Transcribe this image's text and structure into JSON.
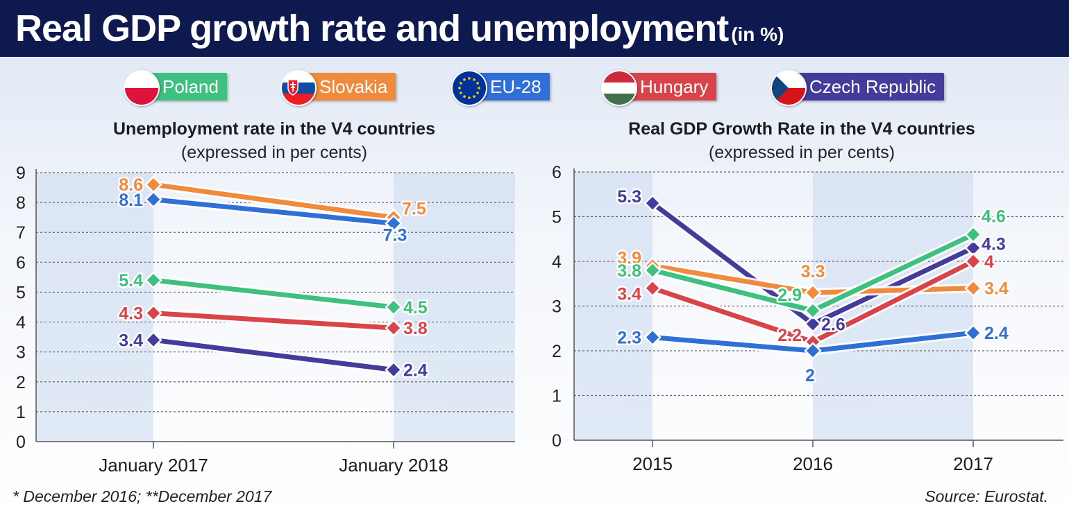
{
  "header": {
    "title": "Real GDP growth rate and unemployment",
    "unit": "(in %)"
  },
  "legend": [
    {
      "name": "Poland",
      "color": "#3ec07f"
    },
    {
      "name": "Slovakia",
      "color": "#f08a3c"
    },
    {
      "name": "EU-28",
      "color": "#2f6fd6"
    },
    {
      "name": "Hungary",
      "color": "#d9434a"
    },
    {
      "name": "Czech Republic",
      "color": "#433c9a"
    }
  ],
  "chart_data": [
    {
      "type": "line",
      "title": "Unemployment rate in the V4 countries",
      "subtitle": "(expressed in per cents)",
      "categories": [
        "January 2017",
        "January 2018"
      ],
      "ylim": [
        0,
        9
      ],
      "yticks": [
        "0",
        "1",
        "2",
        "3",
        "4",
        "5",
        "6",
        "7",
        "8",
        "9"
      ],
      "grid": true,
      "series": [
        {
          "name": "Slovakia",
          "color": "#f08a3c",
          "values": [
            8.6,
            7.5
          ],
          "labels": [
            "8.6",
            "7.5"
          ]
        },
        {
          "name": "EU-28",
          "color": "#2f6fd6",
          "values": [
            8.1,
            7.3
          ],
          "labels": [
            "8.1",
            "7.3"
          ]
        },
        {
          "name": "Poland",
          "color": "#3ec07f",
          "values": [
            5.4,
            4.5
          ],
          "labels": [
            "5.4",
            "4.5"
          ]
        },
        {
          "name": "Hungary",
          "color": "#d9434a",
          "values": [
            4.3,
            3.8
          ],
          "labels": [
            "4.3",
            "3.8"
          ]
        },
        {
          "name": "Czech Republic",
          "color": "#433c9a",
          "values": [
            3.4,
            2.4
          ],
          "labels": [
            "3.4",
            "2.4"
          ]
        }
      ]
    },
    {
      "type": "line",
      "title": "Real GDP Growth Rate in the V4 countries",
      "subtitle": "(expressed in per cents)",
      "categories": [
        "2015",
        "2016",
        "2017"
      ],
      "ylim": [
        0,
        6
      ],
      "yticks": [
        "0",
        "1",
        "2",
        "3",
        "4",
        "5",
        "6"
      ],
      "grid": true,
      "series": [
        {
          "name": "Czech Republic",
          "color": "#433c9a",
          "values": [
            5.3,
            2.6,
            4.3
          ],
          "labels": [
            "5.3",
            "2.6",
            "4.3"
          ]
        },
        {
          "name": "Slovakia",
          "color": "#f08a3c",
          "values": [
            3.9,
            3.3,
            3.4
          ],
          "labels": [
            "3.9",
            "3.3",
            "3.4"
          ]
        },
        {
          "name": "Poland",
          "color": "#3ec07f",
          "values": [
            3.8,
            2.9,
            4.6
          ],
          "labels": [
            "3.8",
            "2.9",
            "4.6"
          ]
        },
        {
          "name": "Hungary",
          "color": "#d9434a",
          "values": [
            3.4,
            2.2,
            4.0
          ],
          "labels": [
            "3.4",
            "2.2",
            "4"
          ]
        },
        {
          "name": "EU-28",
          "color": "#2f6fd6",
          "values": [
            2.3,
            2.0,
            2.4
          ],
          "labels": [
            "2.3",
            "2",
            "2.4"
          ]
        }
      ]
    }
  ],
  "footer": {
    "note": "* December 2016;  **December 2017",
    "source": "Source: Eurostat."
  }
}
